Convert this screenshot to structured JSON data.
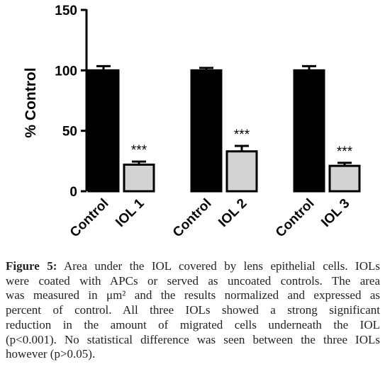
{
  "chart_data": {
    "type": "bar",
    "ylabel": "% Control",
    "ylim": [
      0,
      150
    ],
    "yticks": [
      0,
      50,
      100,
      150
    ],
    "groups": [
      {
        "bars": [
          {
            "label": "Control",
            "value": 100,
            "error": 3.5,
            "color": "#000000",
            "sig": ""
          },
          {
            "label": "IOL 1",
            "value": 22,
            "error": 2.5,
            "color": "#d3d3d3",
            "sig": "***"
          }
        ]
      },
      {
        "bars": [
          {
            "label": "Control",
            "value": 100,
            "error": 2,
            "color": "#000000",
            "sig": ""
          },
          {
            "label": "IOL 2",
            "value": 33,
            "error": 4.5,
            "color": "#d3d3d3",
            "sig": "***"
          }
        ]
      },
      {
        "bars": [
          {
            "label": "Control",
            "value": 100,
            "error": 3.5,
            "color": "#000000",
            "sig": ""
          },
          {
            "label": "IOL 3",
            "value": 21,
            "error": 2.5,
            "color": "#d3d3d3",
            "sig": "***"
          }
        ]
      }
    ]
  },
  "caption": {
    "label": "Figure 5:",
    "lines": [
      " Area under the IOL covered by lens epithelial cells. IOLs",
      "were coated with APCs or served as uncoated controls. The area",
      "was measured in μm² and the results normalized and expressed as",
      "percent of control. All three IOLs showed a strong significant",
      "reduction in the amount of migrated cells underneath the IOL",
      "(p<0.001). No statistical difference was seen between the three IOLs",
      "however (p>0.05)."
    ]
  }
}
